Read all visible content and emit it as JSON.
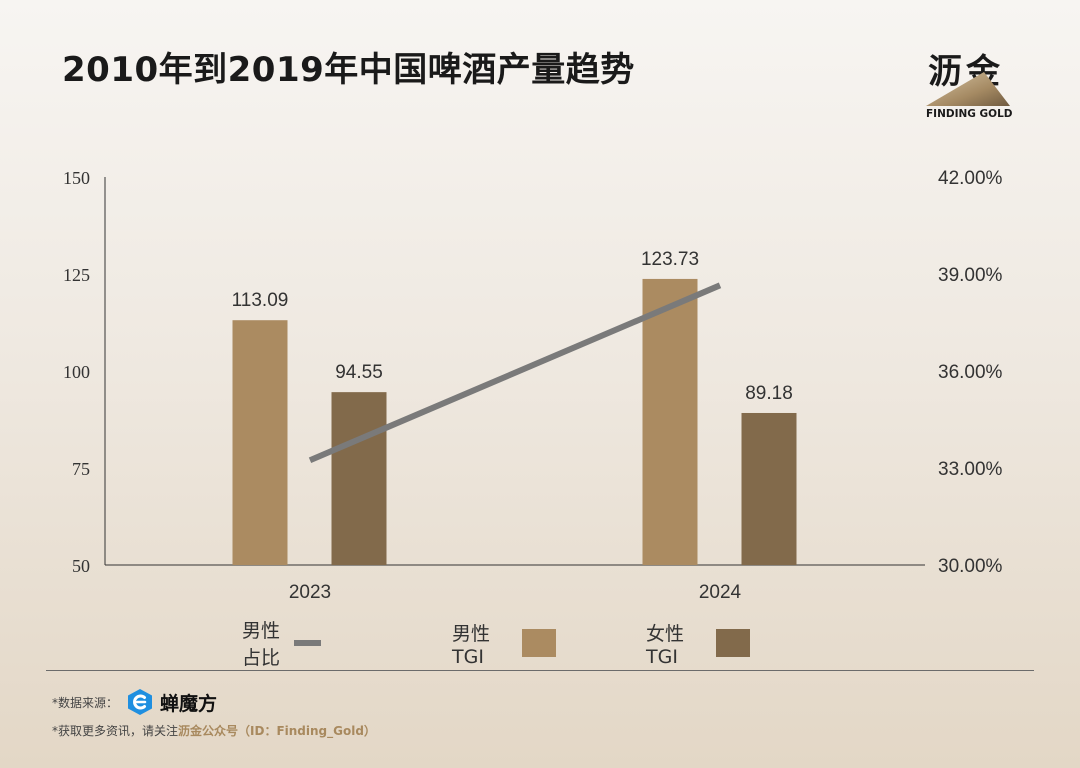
{
  "header": {
    "title": "2010年到2019年中国啤酒产量趋势"
  },
  "logo": {
    "cn": "沥金",
    "en": "FINDING GOLD"
  },
  "chart_data": {
    "type": "bar",
    "categories": [
      "2023",
      "2024"
    ],
    "series": [
      {
        "name": "男性TGI",
        "kind": "bar",
        "axis": "left",
        "color": "#ab8b61",
        "values": [
          113.09,
          123.73
        ],
        "labels": [
          "113.09",
          "123.73"
        ]
      },
      {
        "name": "女性TGI",
        "kind": "bar",
        "axis": "left",
        "color": "#826a4b",
        "values": [
          94.55,
          89.18
        ],
        "labels": [
          "94.55",
          "89.18"
        ]
      },
      {
        "name": "男性占比",
        "kind": "line",
        "axis": "right",
        "color": "#7a7a7a",
        "values": [
          0.3324,
          0.3865
        ]
      }
    ],
    "ylim": [
      50,
      150
    ],
    "yticks": [
      "50",
      "75",
      "100",
      "125",
      "150"
    ],
    "y2lim": [
      0.3,
      0.42
    ],
    "y2ticks": [
      "30.00%",
      "33.00%",
      "36.00%",
      "39.00%",
      "42.00%"
    ],
    "grid": false,
    "legend": "bottom"
  },
  "legend": {
    "items": [
      {
        "label": "男性占比"
      },
      {
        "label": "男性TGI"
      },
      {
        "label": "女性TGI"
      }
    ]
  },
  "footer": {
    "source_prefix": "*数据来源：",
    "brand": "蝉魔方",
    "note_prefix": "*获取更多资讯，请关注",
    "note_highlight": "沥金公众号（ID：Finding_Gold）"
  }
}
